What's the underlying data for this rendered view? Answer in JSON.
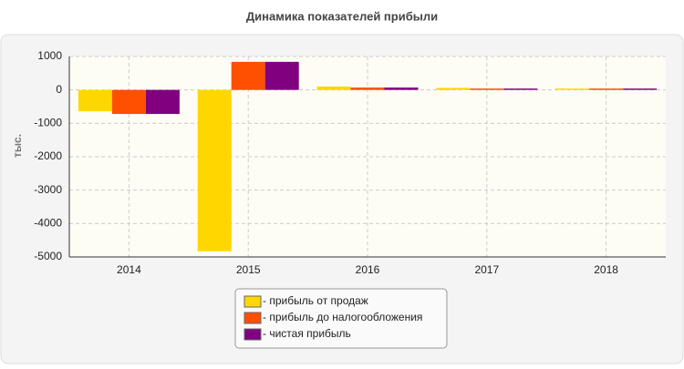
{
  "chart_data": {
    "type": "bar",
    "title": "Динамика показателей прибыли",
    "y_label": "тыс.",
    "categories": [
      "2014",
      "2015",
      "2016",
      "2017",
      "2018"
    ],
    "series": [
      {
        "name": "- прибыль от продаж",
        "color": "#ffd700",
        "values": [
          -640,
          -4830,
          100,
          60,
          40
        ]
      },
      {
        "name": "- прибыль до налогообложения",
        "color": "#ff4f00",
        "values": [
          -720,
          840,
          70,
          40,
          40
        ]
      },
      {
        "name": "- чистая прибыль",
        "color": "#800080",
        "values": [
          -720,
          840,
          70,
          40,
          40
        ]
      }
    ],
    "ylim": [
      -5000,
      1000
    ],
    "yticks": [
      1000,
      0,
      -1000,
      -2000,
      -3000,
      -4000,
      -5000
    ],
    "grid": true
  }
}
